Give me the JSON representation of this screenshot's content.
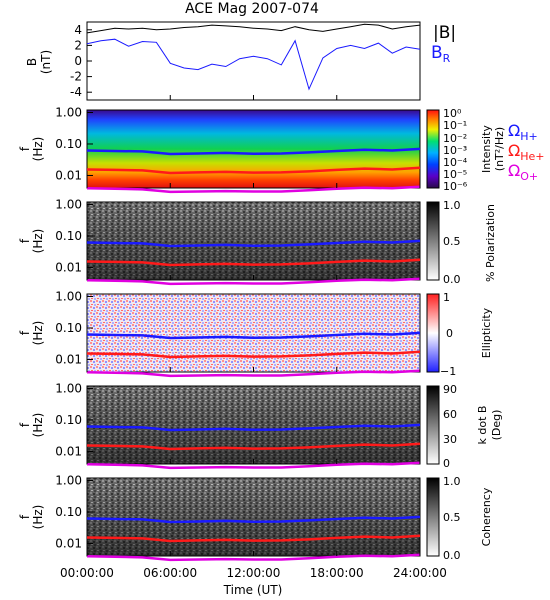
{
  "title": "ACE Mag 2007-074",
  "x_axis": {
    "label": "Time (UT)",
    "ticks": [
      "00:00:00",
      "06:00:00",
      "12:00:00",
      "18:00:00",
      "24:00:00"
    ],
    "range_hours": [
      0,
      24
    ]
  },
  "legend": {
    "B_total": "|B|",
    "B_R": "B",
    "B_R_sub": "R",
    "omega": "Ω",
    "H": "H+",
    "He": "He+",
    "O": "O+"
  },
  "colors": {
    "B_total": "#000000",
    "B_R": "#1a1aff",
    "H_gyro": "#1a1aff",
    "He_gyro": "#ff1a1a",
    "O_gyro": "#e000e0"
  },
  "panels": {
    "b": {
      "ylabel": "B",
      "yunit": "(nT)",
      "yticks": [
        "4",
        "2",
        "0",
        "-2",
        "-4"
      ]
    },
    "freq_axis": {
      "ylabel": "f",
      "yunit": "(Hz)",
      "yticks": [
        "1.00",
        "0.10",
        "0.01"
      ]
    },
    "intensity": {
      "cb_label": "Intensity",
      "cb_unit": "(nT²/Hz)",
      "cb_ticks": [
        "10⁰",
        "10⁻¹",
        "10⁻²",
        "10⁻³",
        "10⁻⁴",
        "10⁻⁵",
        "10⁻⁶"
      ]
    },
    "polarization": {
      "cb_label": "% Polarization",
      "cb_ticks": [
        "1.0",
        "0.5",
        "0.0"
      ]
    },
    "ellipticity": {
      "cb_label": "Ellipticity",
      "cb_ticks": [
        "1",
        "0",
        "−1"
      ]
    },
    "kdotb": {
      "cb_label": "k dot B",
      "cb_unit": "(Deg)",
      "cb_ticks": [
        "90",
        "60",
        "30",
        "0"
      ]
    },
    "coherency": {
      "cb_label": "Coherency",
      "cb_ticks": [
        "1.0",
        "0.5",
        "0.0"
      ]
    }
  },
  "chart_data": [
    {
      "type": "line",
      "title": "ACE Mag 2007-074",
      "xlabel": "Time (UT)",
      "ylabel": "B (nT)",
      "xlim_hours": [
        0,
        24
      ],
      "ylim": [
        -5,
        5
      ],
      "series": [
        {
          "name": "|B|",
          "x_hours": [
            0,
            1,
            2,
            3,
            4,
            5,
            6,
            7,
            8,
            9,
            10,
            11,
            12,
            13,
            14,
            15,
            16,
            17,
            18,
            19,
            20,
            21,
            22,
            23,
            24
          ],
          "values": [
            3.6,
            3.9,
            4.2,
            4.1,
            4.2,
            4.0,
            4.1,
            4.3,
            4.4,
            4.6,
            4.5,
            4.4,
            4.2,
            4.1,
            3.9,
            4.4,
            4.0,
            3.8,
            4.1,
            4.4,
            4.7,
            4.6,
            4.1,
            4.4,
            4.6
          ]
        },
        {
          "name": "BR",
          "x_hours": [
            0,
            1,
            2,
            3,
            4,
            5,
            6,
            7,
            8,
            9,
            10,
            11,
            12,
            13,
            14,
            15,
            16,
            17,
            18,
            19,
            20,
            21,
            22,
            23,
            24
          ],
          "values": [
            2.2,
            2.6,
            2.8,
            1.9,
            2.5,
            2.4,
            -0.3,
            -0.9,
            -1.1,
            -0.4,
            -0.7,
            0.3,
            0.6,
            0.3,
            -0.5,
            2.6,
            -3.6,
            0.4,
            1.6,
            2.0,
            1.6,
            2.3,
            1.0,
            1.8,
            1.5
          ]
        }
      ]
    },
    {
      "type": "heatmap",
      "name": "Intensity",
      "ylabel": "f (Hz)",
      "yscale": "log",
      "ylim": [
        0.004,
        1.2
      ],
      "colorbar_range": [
        1e-06,
        1
      ],
      "lines": [
        {
          "name": "ΩH+",
          "x_hours": [
            0,
            2,
            4,
            6,
            8,
            10,
            12,
            14,
            16,
            18,
            20,
            22,
            24
          ],
          "values": [
            0.062,
            0.06,
            0.058,
            0.048,
            0.05,
            0.052,
            0.049,
            0.05,
            0.054,
            0.06,
            0.066,
            0.062,
            0.07
          ]
        },
        {
          "name": "ΩHe+",
          "x_hours": [
            0,
            2,
            4,
            6,
            8,
            10,
            12,
            14,
            16,
            18,
            20,
            22,
            24
          ],
          "values": [
            0.0155,
            0.015,
            0.0145,
            0.012,
            0.0125,
            0.013,
            0.0123,
            0.0125,
            0.0135,
            0.015,
            0.0165,
            0.0155,
            0.0175
          ]
        },
        {
          "name": "ΩO+",
          "x_hours": [
            0,
            2,
            4,
            6,
            8,
            10,
            12,
            14,
            16,
            18,
            20,
            22,
            24
          ],
          "values": [
            0.0039,
            0.0038,
            0.0036,
            0.003,
            0.0031,
            0.0032,
            0.0031,
            0.0031,
            0.0034,
            0.0038,
            0.0041,
            0.0039,
            0.0044
          ]
        }
      ]
    },
    {
      "type": "heatmap",
      "name": "% Polarization",
      "ylabel": "f (Hz)",
      "yscale": "log",
      "colorbar_range": [
        0,
        1
      ]
    },
    {
      "type": "heatmap",
      "name": "Ellipticity",
      "ylabel": "f (Hz)",
      "yscale": "log",
      "colorbar_range": [
        -1,
        1
      ]
    },
    {
      "type": "heatmap",
      "name": "k dot B",
      "ylabel": "f (Hz)",
      "yscale": "log",
      "colorbar_range": [
        0,
        90
      ]
    },
    {
      "type": "heatmap",
      "name": "Coherency",
      "ylabel": "f (Hz)",
      "yscale": "log",
      "colorbar_range": [
        0,
        1
      ]
    }
  ]
}
